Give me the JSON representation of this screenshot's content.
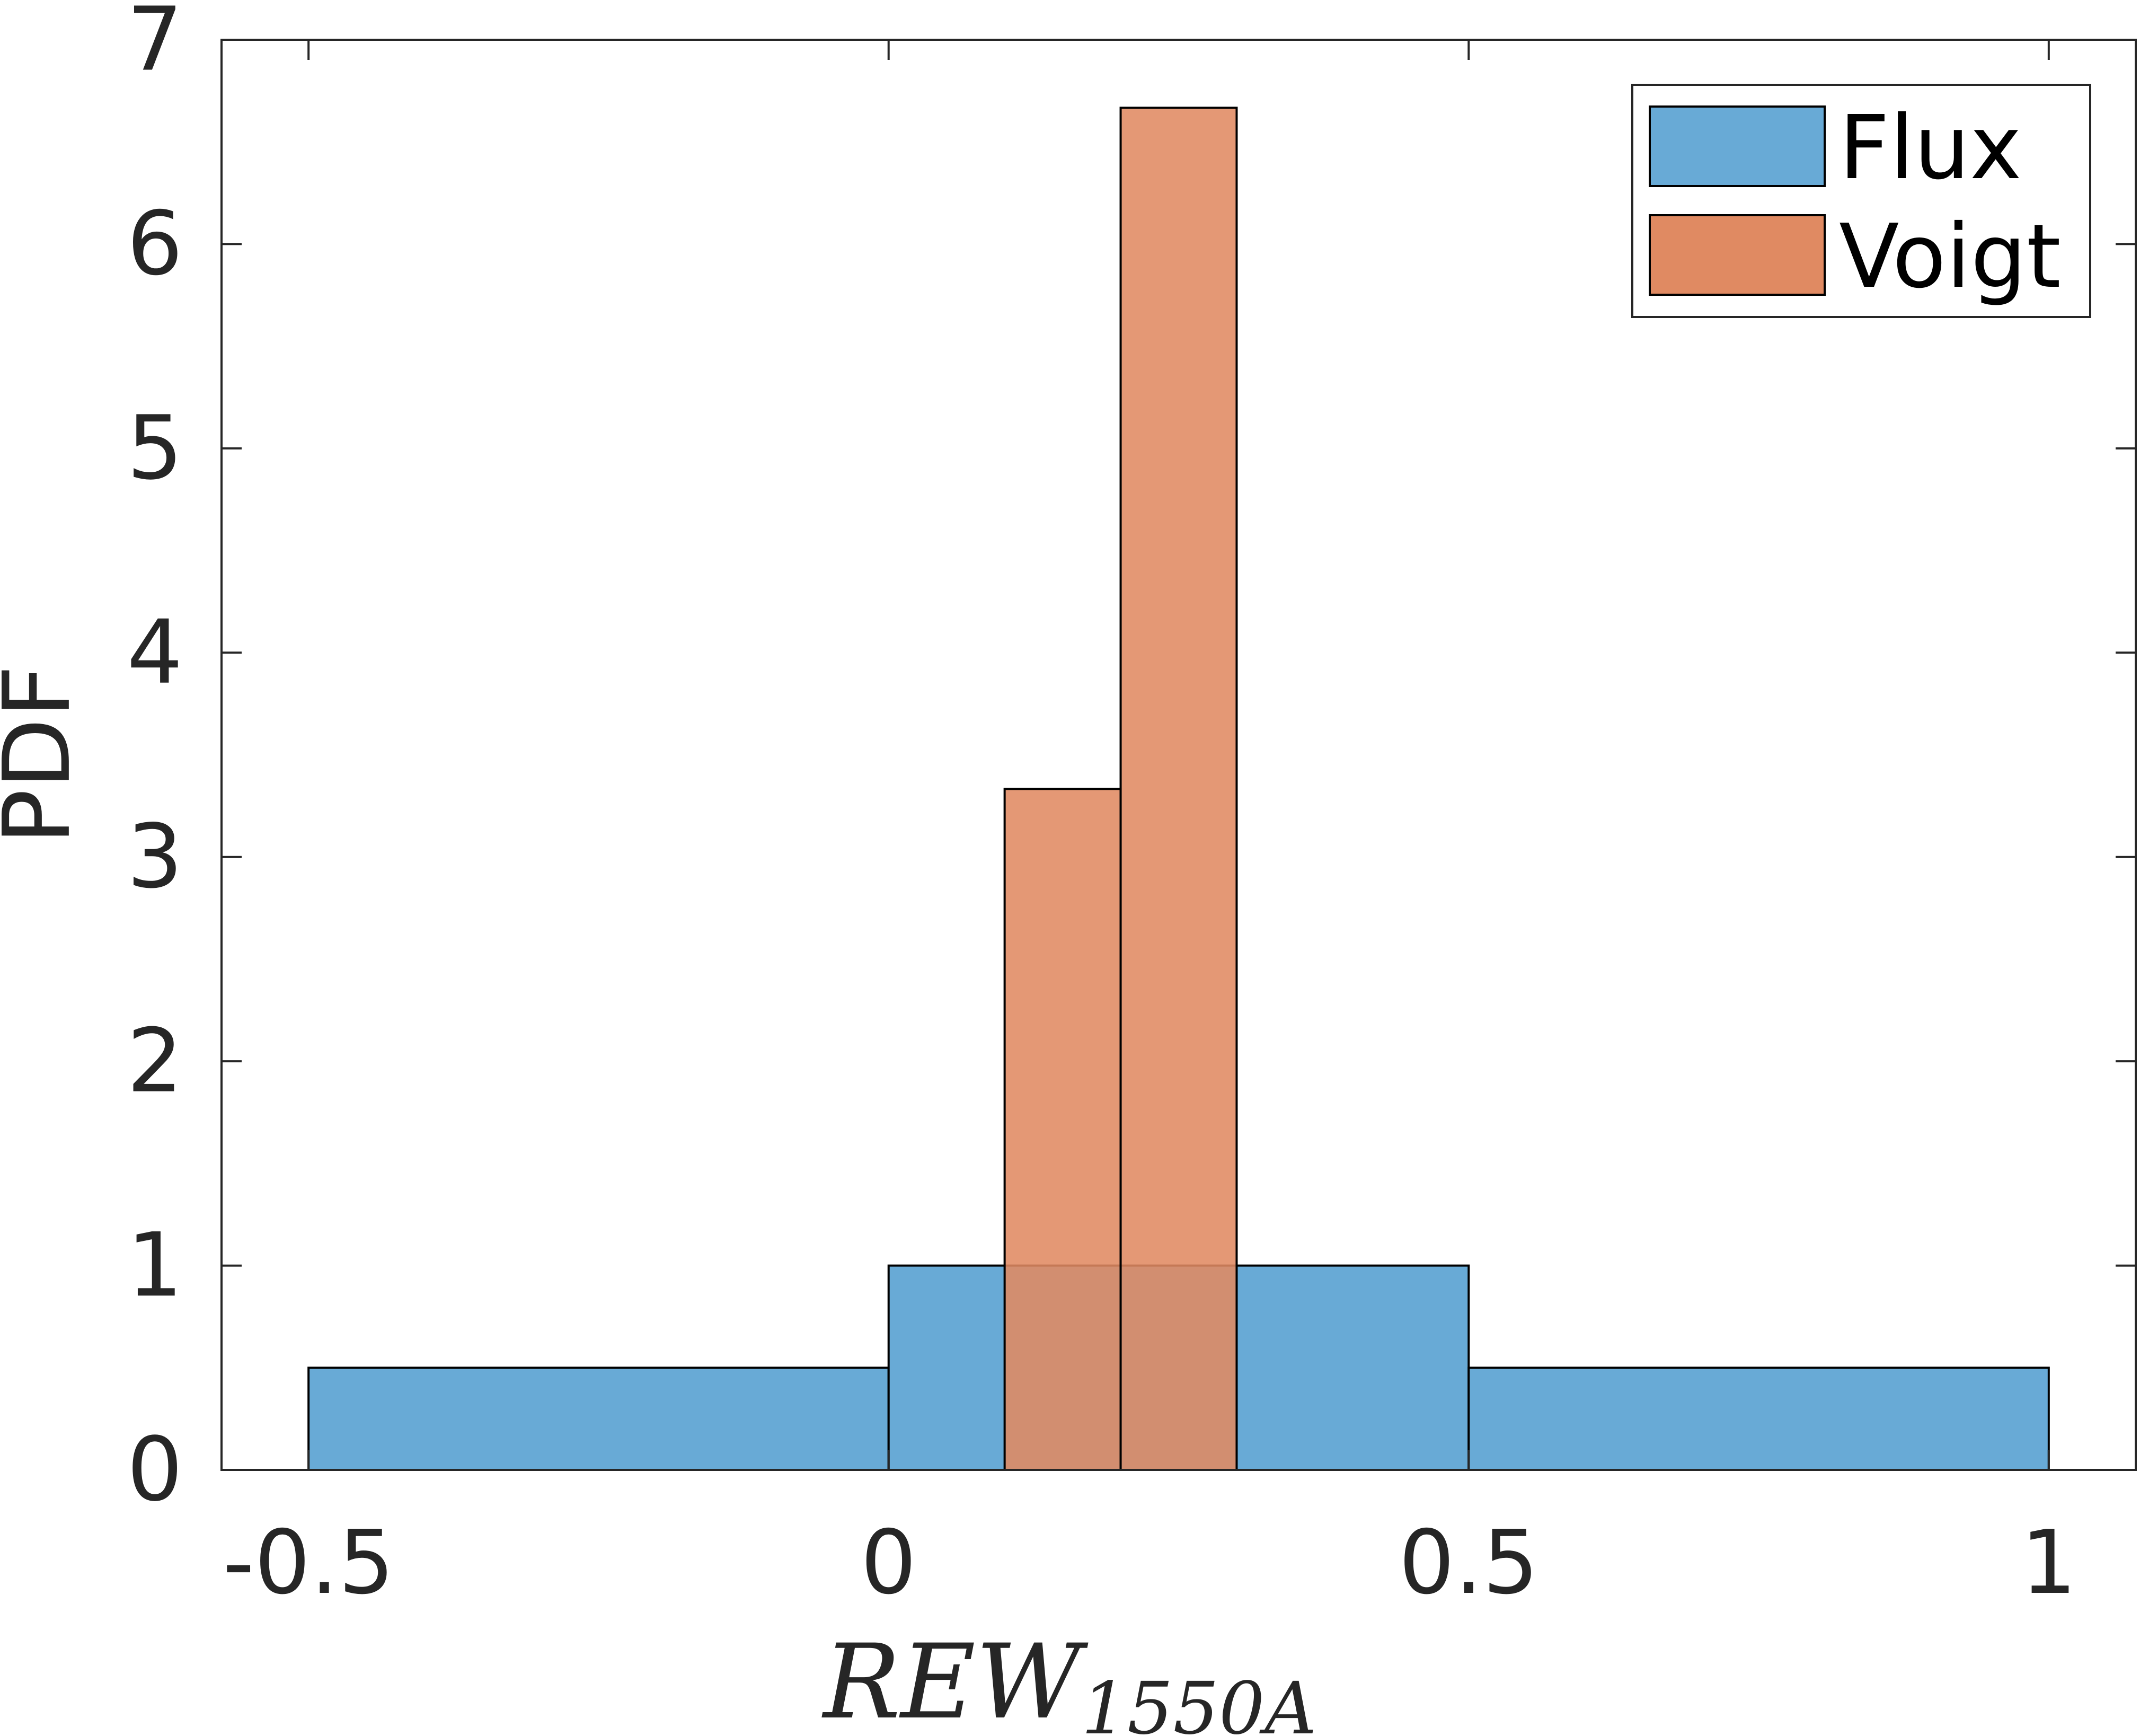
{
  "chart_data": {
    "type": "bar",
    "xlabel": {
      "main": "REW",
      "subscript": "1550A"
    },
    "ylabel": "PDF",
    "xlim": [
      -0.575,
      1.075
    ],
    "ylim": [
      0,
      7
    ],
    "xticks": [
      -0.5,
      0,
      0.5,
      1
    ],
    "xtick_labels": [
      "-0.5",
      "0",
      "0.5",
      "1"
    ],
    "yticks": [
      0,
      1,
      2,
      3,
      4,
      5,
      6,
      7
    ],
    "ytick_labels": [
      "0",
      "1",
      "2",
      "3",
      "4",
      "5",
      "6",
      "7"
    ],
    "grid": false,
    "legend_position": "top-right",
    "series": [
      {
        "name": "Flux",
        "color": "#68aad6",
        "edges": [
          -0.5,
          0,
          0.5,
          1
        ],
        "values": [
          0.5,
          1,
          0.5
        ]
      },
      {
        "name": "Voigt",
        "color": "#e08a62",
        "edges": [
          0.1,
          0.2,
          0.3
        ],
        "values": [
          3.333,
          6.667
        ]
      }
    ],
    "colors": {
      "flux_fill": "#68aad6",
      "voigt_fill": "#e08a62",
      "voigt_opacity": 0.88,
      "axis": "#262626"
    }
  }
}
